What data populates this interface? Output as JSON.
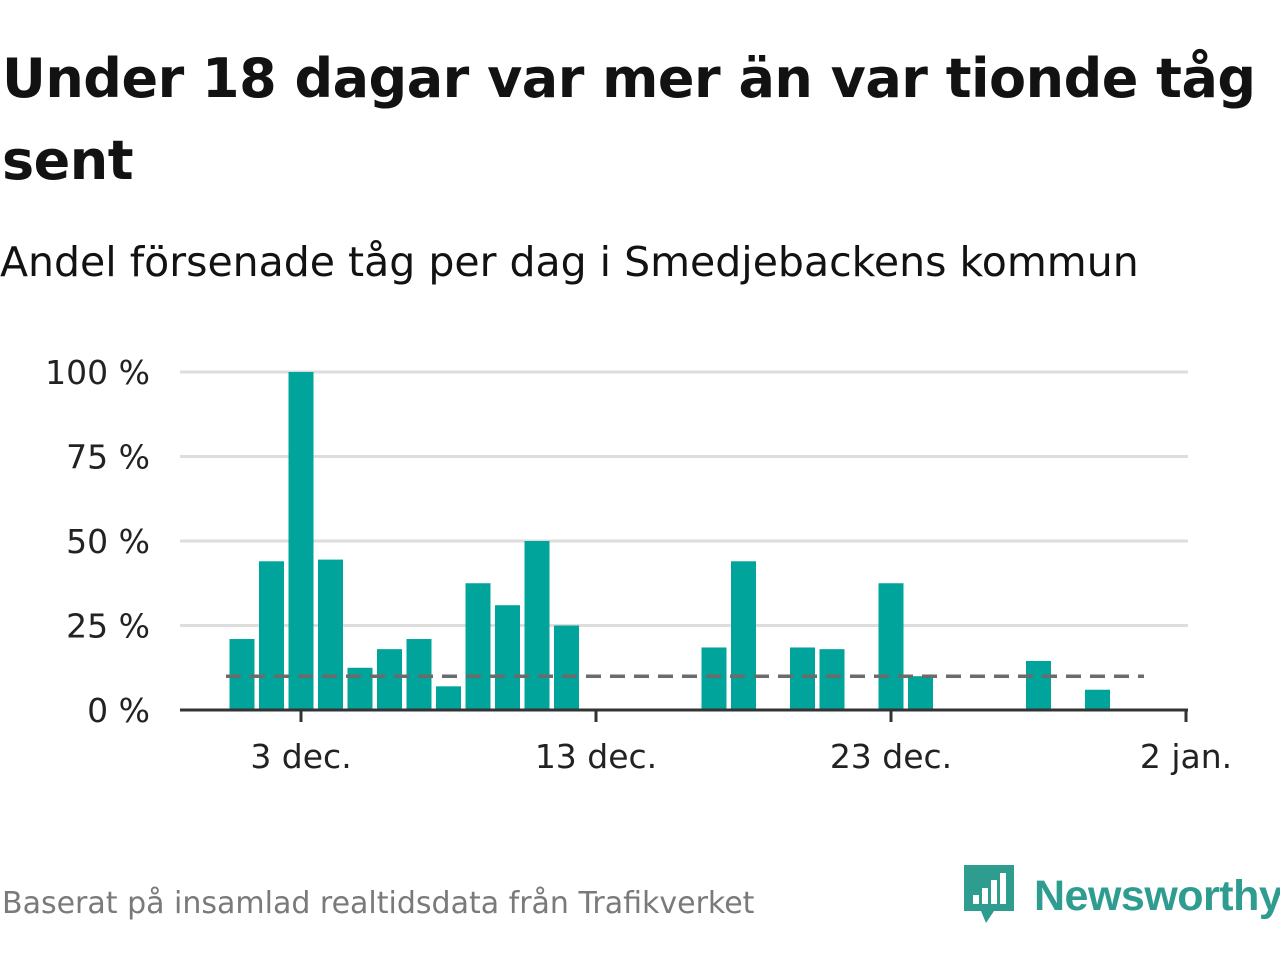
{
  "title": "Under 18 dagar var mer än var tionde tåg sent",
  "subtitle": "Andel försenade tåg per dag i Smedjebackens kommun",
  "footer": "Baserat på insamlad realtidsdata från Trafikverket",
  "brand": {
    "name": "Newsworthy",
    "icon": "newsworthy-logo-icon",
    "color": "#2f9c90"
  },
  "colors": {
    "bar": "#00a49a",
    "grid": "#dddddd",
    "axis": "#333333",
    "reference": "#6b6b6b"
  },
  "chart_data": {
    "type": "bar",
    "x": [
      "1 dec.",
      "2 dec.",
      "3 dec.",
      "4 dec.",
      "5 dec.",
      "6 dec.",
      "7 dec.",
      "8 dec.",
      "9 dec.",
      "10 dec.",
      "11 dec.",
      "12 dec.",
      "13 dec.",
      "14 dec.",
      "15 dec.",
      "16 dec.",
      "17 dec.",
      "18 dec.",
      "19 dec.",
      "20 dec.",
      "21 dec.",
      "22 dec.",
      "23 dec.",
      "24 dec.",
      "25 dec.",
      "26 dec.",
      "27 dec.",
      "28 dec.",
      "29 dec.",
      "30 dec."
    ],
    "values": [
      21,
      44,
      100,
      44.5,
      12.5,
      18,
      21,
      7,
      37.5,
      31,
      50,
      25,
      0,
      0,
      0,
      0,
      18.5,
      44,
      0,
      18.5,
      18,
      0,
      37.5,
      10,
      0,
      0,
      0,
      14.5,
      0,
      6
    ],
    "unit": "%",
    "ylim": [
      0,
      100
    ],
    "yticks": [
      0,
      25,
      50,
      75,
      100
    ],
    "ytick_labels": [
      "0 %",
      "25 %",
      "50 %",
      "75 %",
      "100 %"
    ],
    "xticks": [
      "3 dec.",
      "13 dec.",
      "23 dec.",
      "2 jan."
    ],
    "reference_line": {
      "value": 10,
      "style": "dashed"
    },
    "grid": true,
    "legend": false
  }
}
